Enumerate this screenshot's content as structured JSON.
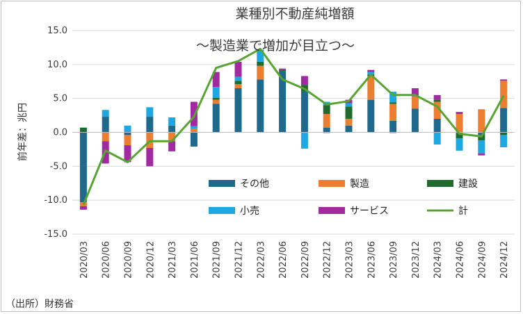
{
  "chart_data": {
    "type": "bar",
    "title": "業種別不動産純増額",
    "subtitle": "～製造業で増加が目立つ～",
    "ylabel": "前年差：兆円",
    "source": "（出所）財務省",
    "ylim": [
      -15,
      15
    ],
    "yticks": [
      "15.0",
      "10.0",
      "5.0",
      "0.0",
      "-5.0",
      "-10.0",
      "-15.0"
    ],
    "categories": [
      "2020/03",
      "2020/06",
      "2020/09",
      "2020/12",
      "2021/03",
      "2021/06",
      "2021/09",
      "2021/12",
      "2022/03",
      "2022/06",
      "2022/09",
      "2022/12",
      "2023/03",
      "2023/06",
      "2023/09",
      "2023/12",
      "2024/03",
      "2024/06",
      "2024/09",
      "2024/12"
    ],
    "series": [
      {
        "name": "その他",
        "type": "bar",
        "color": "#1f6a8c",
        "values": [
          -10.3,
          2.3,
          -0.4,
          2.3,
          1.0,
          -2.1,
          4.2,
          6.5,
          7.8,
          9.0,
          6.0,
          0.7,
          1.0,
          4.8,
          1.7,
          3.5,
          2.0,
          -0.2,
          -0.4,
          3.6
        ]
      },
      {
        "name": "製造",
        "type": "bar",
        "color": "#ed7d31",
        "values": [
          -0.6,
          -1.3,
          -1.5,
          -2.3,
          -1.3,
          0.5,
          0.6,
          0.6,
          2.0,
          0.0,
          -0.1,
          2.0,
          1.0,
          3.5,
          2.5,
          1.8,
          2.5,
          2.7,
          3.4,
          4.0
        ]
      },
      {
        "name": "建設",
        "type": "bar",
        "color": "#1e6b2d",
        "values": [
          0.7,
          0.0,
          0.0,
          0.0,
          0.0,
          0.0,
          0.3,
          0.5,
          0.6,
          0.2,
          1.0,
          1.3,
          1.8,
          0.2,
          0.2,
          0.0,
          0.3,
          -0.7,
          -0.8,
          -0.4
        ]
      },
      {
        "name": "小売",
        "type": "bar",
        "color": "#1ea7e1",
        "values": [
          0.0,
          1.0,
          1.0,
          1.4,
          1.2,
          0.4,
          1.6,
          0.6,
          1.8,
          0.0,
          -2.3,
          0.5,
          0.5,
          0.4,
          1.6,
          0.0,
          -1.8,
          -1.8,
          -1.9,
          -1.8
        ]
      },
      {
        "name": "サービス",
        "type": "bar",
        "color": "#a22aa0",
        "values": [
          -0.5,
          -3.3,
          -2.5,
          -2.7,
          -1.5,
          3.6,
          2.2,
          2.2,
          0.0,
          0.2,
          1.3,
          -0.1,
          0.5,
          0.3,
          -0.1,
          1.2,
          0.7,
          0.3,
          -0.3,
          0.2
        ]
      },
      {
        "name": "計",
        "type": "line",
        "color": "#56a532",
        "values": [
          -10.7,
          -2.7,
          -4.4,
          -1.3,
          -1.3,
          2.3,
          9.5,
          10.5,
          12.3,
          7.8,
          6.4,
          4.1,
          4.6,
          8.5,
          5.5,
          5.5,
          3.8,
          -0.2,
          -0.6,
          5.4
        ]
      }
    ]
  }
}
